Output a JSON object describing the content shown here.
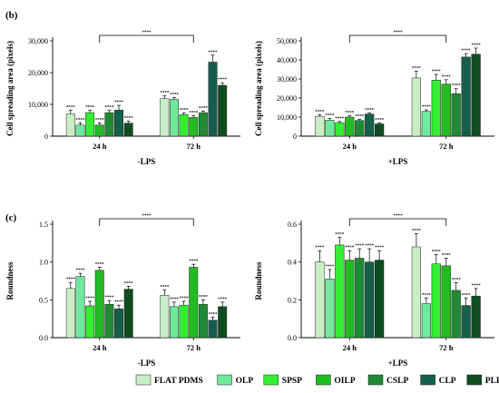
{
  "colors": [
    "#c9eec5",
    "#6fe89c",
    "#33ee33",
    "#22bb22",
    "#1f8a33",
    "#14604a",
    "#0e4d20"
  ],
  "legend": [
    "FLAT PDMS",
    "OLP",
    "SPSP",
    "OILP",
    "CSLP",
    "CLP",
    "PLP"
  ],
  "chart_data": [
    {
      "type": "bar",
      "panel": "(b)",
      "ylabel": "Cell spreading area (pixels)",
      "condition": "-LPS",
      "categories": [
        "24 h",
        "72 h"
      ],
      "ylim": [
        0,
        30000
      ],
      "yticks": [
        "0",
        "10,000",
        "20,000",
        "30,000"
      ],
      "series": [
        {
          "name": "FLAT PDMS",
          "values": [
            7000,
            11800
          ],
          "errors": [
            1200,
            900
          ]
        },
        {
          "name": "OLP",
          "values": [
            3500,
            11600
          ],
          "errors": [
            700,
            600
          ]
        },
        {
          "name": "SPSP",
          "values": [
            7400,
            6800
          ],
          "errors": [
            700,
            500
          ]
        },
        {
          "name": "OILP",
          "values": [
            3500,
            5900
          ],
          "errors": [
            700,
            500
          ]
        },
        {
          "name": "CSLP",
          "values": [
            7400,
            7400
          ],
          "errors": [
            700,
            500
          ]
        },
        {
          "name": "CLP",
          "values": [
            8200,
            23300
          ],
          "errors": [
            1500,
            2200
          ]
        },
        {
          "name": "PLP",
          "values": [
            4100,
            16000
          ],
          "errors": [
            600,
            800
          ]
        }
      ]
    },
    {
      "type": "bar",
      "panel": "",
      "ylabel": "Cell spreading area (pixels)",
      "condition": "+LPS",
      "categories": [
        "24 h",
        "72 h"
      ],
      "ylim": [
        0,
        50000
      ],
      "yticks": [
        "0",
        "10,000",
        "20,000",
        "30,000",
        "40,000",
        "50,000"
      ],
      "series": [
        {
          "name": "FLAT PDMS",
          "values": [
            10400,
            30500
          ],
          "errors": [
            900,
            3500
          ]
        },
        {
          "name": "OLP",
          "values": [
            8400,
            13000
          ],
          "errors": [
            800,
            800
          ]
        },
        {
          "name": "SPSP",
          "values": [
            7100,
            29400
          ],
          "errors": [
            600,
            3000
          ]
        },
        {
          "name": "OILP",
          "values": [
            10000,
            27300
          ],
          "errors": [
            700,
            2300
          ]
        },
        {
          "name": "CSLP",
          "values": [
            8200,
            22300
          ],
          "errors": [
            600,
            2600
          ]
        },
        {
          "name": "CLP",
          "values": [
            11600,
            41500
          ],
          "errors": [
            600,
            1800
          ]
        },
        {
          "name": "PLP",
          "values": [
            6400,
            43000
          ],
          "errors": [
            600,
            3200
          ]
        }
      ]
    },
    {
      "type": "bar",
      "panel": "(c)",
      "ylabel": "Roundness",
      "condition": "-LPS",
      "categories": [
        "24 h",
        "72 h"
      ],
      "ylim": [
        0,
        1.5
      ],
      "yticks": [
        "0.0",
        "0.5",
        "1.0",
        "1.5"
      ],
      "series": [
        {
          "name": "FLAT PDMS",
          "values": [
            0.65,
            0.56
          ],
          "errors": [
            0.08,
            0.07
          ]
        },
        {
          "name": "OLP",
          "values": [
            0.81,
            0.41
          ],
          "errors": [
            0.04,
            0.06
          ]
        },
        {
          "name": "SPSP",
          "values": [
            0.42,
            0.43
          ],
          "errors": [
            0.06,
            0.05
          ]
        },
        {
          "name": "OILP",
          "values": [
            0.89,
            0.93
          ],
          "errors": [
            0.04,
            0.04
          ]
        },
        {
          "name": "CSLP",
          "values": [
            0.44,
            0.44
          ],
          "errors": [
            0.05,
            0.06
          ]
        },
        {
          "name": "CLP",
          "values": [
            0.38,
            0.23
          ],
          "errors": [
            0.05,
            0.04
          ]
        },
        {
          "name": "PLP",
          "values": [
            0.64,
            0.41
          ],
          "errors": [
            0.04,
            0.06
          ]
        }
      ]
    },
    {
      "type": "bar",
      "panel": "",
      "ylabel": "Roundness",
      "condition": "+LPS",
      "categories": [
        "24 h",
        "72 h"
      ],
      "ylim": [
        0,
        0.6
      ],
      "yticks": [
        "0.0",
        "0.2",
        "0.4",
        "0.6"
      ],
      "series": [
        {
          "name": "FLAT PDMS",
          "values": [
            0.4,
            0.48
          ],
          "errors": [
            0.06,
            0.07
          ]
        },
        {
          "name": "OLP",
          "values": [
            0.31,
            0.18
          ],
          "errors": [
            0.05,
            0.03
          ]
        },
        {
          "name": "SPSP",
          "values": [
            0.49,
            0.39
          ],
          "errors": [
            0.04,
            0.05
          ]
        },
        {
          "name": "OILP",
          "values": [
            0.41,
            0.38
          ],
          "errors": [
            0.05,
            0.04
          ]
        },
        {
          "name": "CSLP",
          "values": [
            0.42,
            0.25
          ],
          "errors": [
            0.05,
            0.04
          ]
        },
        {
          "name": "CLP",
          "values": [
            0.4,
            0.17
          ],
          "errors": [
            0.07,
            0.04
          ]
        },
        {
          "name": "PLP",
          "values": [
            0.41,
            0.22
          ],
          "errors": [
            0.05,
            0.04
          ]
        }
      ]
    }
  ]
}
